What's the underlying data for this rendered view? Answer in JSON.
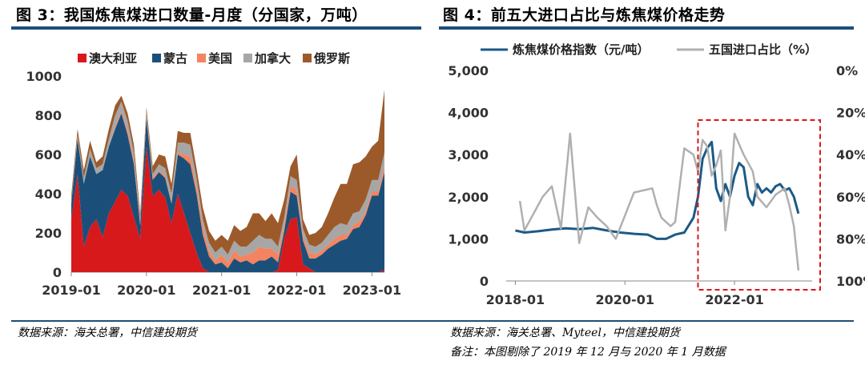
{
  "left_panel": {
    "title": "图 3：我国炼焦煤进口数量-月度（分国家，万吨）",
    "source": "数据来源：海关总署，中信建投期货"
  },
  "right_panel": {
    "title": "图 4：前五大进口占比与炼焦煤价格走势",
    "source": "数据来源：海关总署、Myteel，中信建投期货",
    "note": "备注：本图剔除了 2019 年 12 月与 2020 年 1 月数据"
  },
  "colors": {
    "australia": "#d7191c",
    "mongolia": "#1b4f7a",
    "usa": "#f4845f",
    "canada": "#a6a6a6",
    "russia": "#9c5a2b",
    "price": "#1b5a86",
    "share": "#b0b0b0",
    "highlight": "#d7191c",
    "rule": "#1f4e79"
  },
  "chart_data": [
    {
      "type": "area",
      "stacked": true,
      "title": "",
      "xlabel": "",
      "ylabel": "",
      "x_ticks": [
        "2019-01",
        "2020-01",
        "2021-01",
        "2022-01",
        "2023-01"
      ],
      "y_ticks": [
        "0",
        "200",
        "400",
        "600",
        "800",
        "1000"
      ],
      "ylim": [
        0,
        1000
      ],
      "legend_position": "top",
      "x": [
        "2019-01",
        "2019-02",
        "2019-03",
        "2019-04",
        "2019-05",
        "2019-06",
        "2019-07",
        "2019-08",
        "2019-09",
        "2019-10",
        "2019-11",
        "2019-12",
        "2020-01",
        "2020-02",
        "2020-03",
        "2020-04",
        "2020-05",
        "2020-06",
        "2020-07",
        "2020-08",
        "2020-09",
        "2020-10",
        "2020-11",
        "2020-12",
        "2021-01",
        "2021-02",
        "2021-03",
        "2021-04",
        "2021-05",
        "2021-06",
        "2021-07",
        "2021-08",
        "2021-09",
        "2021-10",
        "2021-11",
        "2021-12",
        "2022-01",
        "2022-02",
        "2022-03",
        "2022-04",
        "2022-05",
        "2022-06",
        "2022-07",
        "2022-08",
        "2022-09",
        "2022-10",
        "2022-11",
        "2022-12",
        "2023-01",
        "2023-02",
        "2023-03"
      ],
      "series": [
        {
          "name": "澳大利亚",
          "color_key": "australia",
          "values": [
            270,
            500,
            130,
            230,
            270,
            180,
            300,
            360,
            420,
            390,
            280,
            170,
            640,
            390,
            420,
            380,
            250,
            400,
            300,
            200,
            100,
            20,
            0,
            0,
            0,
            0,
            0,
            0,
            0,
            0,
            0,
            0,
            0,
            10,
            170,
            270,
            280,
            40,
            20,
            0,
            0,
            0,
            0,
            0,
            0,
            0,
            0,
            0,
            0,
            0,
            10
          ]
        },
        {
          "name": "蒙古",
          "color_key": "mongolia",
          "values": [
            80,
            180,
            320,
            360,
            230,
            340,
            340,
            370,
            390,
            310,
            270,
            70,
            150,
            80,
            90,
            100,
            100,
            200,
            280,
            350,
            300,
            170,
            80,
            40,
            50,
            20,
            70,
            50,
            60,
            40,
            60,
            60,
            80,
            40,
            40,
            140,
            110,
            120,
            50,
            70,
            90,
            120,
            140,
            160,
            170,
            220,
            230,
            290,
            390,
            390,
            500
          ]
        },
        {
          "name": "美国",
          "color_key": "usa",
          "values": [
            0,
            0,
            0,
            0,
            0,
            0,
            0,
            10,
            10,
            20,
            20,
            10,
            10,
            10,
            10,
            10,
            10,
            10,
            20,
            40,
            30,
            40,
            30,
            20,
            40,
            30,
            40,
            30,
            30,
            60,
            70,
            60,
            40,
            40,
            30,
            30,
            30,
            20,
            30,
            20,
            20,
            20,
            30,
            30,
            20,
            20,
            30,
            20,
            20,
            20,
            30
          ]
        },
        {
          "name": "加拿大",
          "color_key": "canada",
          "values": [
            10,
            20,
            30,
            40,
            30,
            30,
            40,
            60,
            50,
            50,
            40,
            20,
            20,
            20,
            30,
            40,
            40,
            50,
            60,
            60,
            50,
            40,
            40,
            40,
            40,
            40,
            50,
            50,
            40,
            60,
            60,
            50,
            50,
            40,
            40,
            50,
            50,
            40,
            40,
            40,
            40,
            50,
            60,
            60,
            50,
            60,
            50,
            60,
            60,
            60,
            70
          ]
        },
        {
          "name": "俄罗斯",
          "color_key": "russia",
          "values": [
            30,
            30,
            40,
            40,
            30,
            40,
            50,
            50,
            30,
            40,
            40,
            30,
            20,
            40,
            50,
            60,
            50,
            60,
            50,
            60,
            50,
            60,
            60,
            60,
            60,
            70,
            80,
            80,
            100,
            140,
            110,
            90,
            130,
            120,
            90,
            50,
            130,
            50,
            50,
            70,
            80,
            110,
            150,
            200,
            210,
            250,
            250,
            220,
            170,
            200,
            320
          ]
        }
      ]
    },
    {
      "type": "line",
      "title": "",
      "xlabel": "",
      "ylabel": "",
      "legend_position": "top",
      "x_ticks": [
        "2018-01",
        "2020-01",
        "2022-01"
      ],
      "y_ticks": [
        "0",
        "1,000",
        "2,000",
        "3,000",
        "4,000",
        "5,000"
      ],
      "y2_ticks": [
        "0%",
        "20%",
        "40%",
        "60%",
        "80%",
        "100%"
      ],
      "ylim": [
        0,
        5000
      ],
      "y2lim": [
        0,
        100
      ],
      "y2_inverted": true,
      "series": [
        {
          "name": "炼焦煤价格指数（元/吨）",
          "color_key": "price",
          "axis": "left",
          "x": [
            "2018-01",
            "2018-03",
            "2018-06",
            "2018-09",
            "2018-12",
            "2019-03",
            "2019-06",
            "2019-09",
            "2019-12",
            "2020-03",
            "2020-06",
            "2020-08",
            "2020-10",
            "2020-12",
            "2021-02",
            "2021-04",
            "2021-05",
            "2021-06",
            "2021-07",
            "2021-08",
            "2021-09",
            "2021-10",
            "2021-11",
            "2021-12",
            "2022-01",
            "2022-02",
            "2022-03",
            "2022-04",
            "2022-05",
            "2022-06",
            "2022-07",
            "2022-08",
            "2022-09",
            "2022-10",
            "2022-11",
            "2022-12",
            "2023-01",
            "2023-02",
            "2023-03"
          ],
          "values": [
            1200,
            1150,
            1180,
            1220,
            1250,
            1230,
            1260,
            1200,
            1150,
            1120,
            1100,
            1000,
            1000,
            1100,
            1150,
            1500,
            2000,
            2900,
            3150,
            3300,
            2200,
            1900,
            2300,
            2000,
            2500,
            2800,
            2700,
            2000,
            1800,
            2300,
            2100,
            2200,
            2100,
            2250,
            2300,
            2150,
            2200,
            2000,
            1600
          ]
        },
        {
          "name": "五国进口占比（%）",
          "color_key": "share",
          "axis": "right",
          "x": [
            "2018-02",
            "2018-03",
            "2018-05",
            "2018-07",
            "2018-09",
            "2018-11",
            "2019-01",
            "2019-03",
            "2019-05",
            "2019-07",
            "2019-09",
            "2019-11",
            "2020-03",
            "2020-05",
            "2020-07",
            "2020-08",
            "2020-09",
            "2020-11",
            "2020-12",
            "2021-02",
            "2021-04",
            "2021-05",
            "2021-06",
            "2021-07",
            "2021-08",
            "2021-09",
            "2021-10",
            "2021-11",
            "2021-12",
            "2022-01",
            "2022-02",
            "2022-03",
            "2022-05",
            "2022-06",
            "2022-08",
            "2022-09",
            "2022-10",
            "2022-12",
            "2023-01",
            "2023-02",
            "2023-03"
          ],
          "values": [
            62,
            76,
            68,
            60,
            55,
            75,
            30,
            82,
            65,
            70,
            74,
            80,
            58,
            57,
            56,
            64,
            70,
            74,
            72,
            37,
            40,
            48,
            33,
            36,
            50,
            45,
            38,
            76,
            60,
            30,
            35,
            40,
            48,
            60,
            65,
            62,
            59,
            56,
            64,
            74,
            95
          ]
        }
      ]
    }
  ]
}
